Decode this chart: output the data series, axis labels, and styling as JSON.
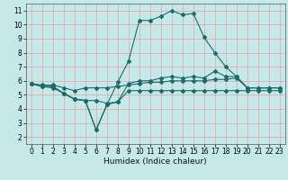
{
  "xlabel": "Humidex (Indice chaleur)",
  "bg_color": "#c5e8e8",
  "grid_color": "#e8a0a0",
  "line_color": "#1a6b6b",
  "xlim": [
    -0.5,
    23.5
  ],
  "ylim": [
    1.5,
    11.5
  ],
  "xticks": [
    0,
    1,
    2,
    3,
    4,
    5,
    6,
    7,
    8,
    9,
    10,
    11,
    12,
    13,
    14,
    15,
    16,
    17,
    18,
    19,
    20,
    21,
    22,
    23
  ],
  "yticks": [
    2,
    3,
    4,
    5,
    6,
    7,
    8,
    9,
    10,
    11
  ],
  "line1_x": [
    0,
    1,
    2,
    3,
    4,
    5,
    6,
    7,
    8,
    9,
    10,
    11,
    12,
    13,
    14,
    15,
    16,
    17,
    18,
    19,
    20,
    21,
    22,
    23
  ],
  "line1_y": [
    5.8,
    5.6,
    5.5,
    5.1,
    4.7,
    4.6,
    4.6,
    4.4,
    4.5,
    5.3,
    5.3,
    5.3,
    5.3,
    5.3,
    5.3,
    5.3,
    5.3,
    5.3,
    5.3,
    5.3,
    5.3,
    5.3,
    5.3,
    5.3
  ],
  "line2_x": [
    0,
    1,
    2,
    3,
    4,
    5,
    6,
    7,
    8,
    9,
    10,
    11,
    12,
    13,
    14,
    15,
    16,
    17,
    18,
    19,
    20,
    21,
    22,
    23
  ],
  "line2_y": [
    5.8,
    5.7,
    5.7,
    5.5,
    5.3,
    5.5,
    5.5,
    5.5,
    5.6,
    5.7,
    5.8,
    5.9,
    5.9,
    6.0,
    6.0,
    6.0,
    6.0,
    6.1,
    6.1,
    6.2,
    5.5,
    5.5,
    5.5,
    5.5
  ],
  "line3_x": [
    0,
    1,
    2,
    3,
    4,
    5,
    6,
    7,
    8,
    9,
    10,
    11,
    12,
    13,
    14,
    15,
    16,
    17,
    18,
    19,
    20,
    21,
    22,
    23
  ],
  "line3_y": [
    5.8,
    5.6,
    5.6,
    5.1,
    4.7,
    4.6,
    2.5,
    4.3,
    5.9,
    7.4,
    10.3,
    10.3,
    10.6,
    11.0,
    10.7,
    10.8,
    9.1,
    8.0,
    7.0,
    6.3,
    5.5,
    5.5,
    5.5,
    5.5
  ],
  "line4_x": [
    0,
    1,
    2,
    3,
    4,
    5,
    6,
    7,
    8,
    9,
    10,
    11,
    12,
    13,
    14,
    15,
    16,
    17,
    18,
    19,
    20,
    21,
    22,
    23
  ],
  "line4_y": [
    5.8,
    5.6,
    5.6,
    5.1,
    4.7,
    4.6,
    2.5,
    4.3,
    4.5,
    5.8,
    6.0,
    6.0,
    6.2,
    6.3,
    6.2,
    6.3,
    6.2,
    6.7,
    6.3,
    6.3,
    5.5,
    5.5,
    5.5,
    5.5
  ]
}
